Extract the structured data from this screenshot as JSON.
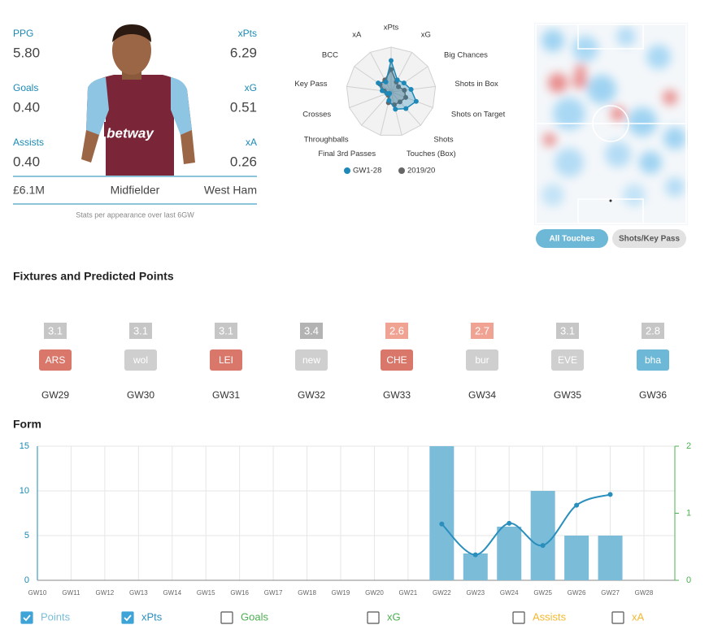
{
  "profile": {
    "stats": [
      {
        "left_label": "PPG",
        "left_value": "5.80",
        "right_label": "xPts",
        "right_value": "6.29"
      },
      {
        "left_label": "Goals",
        "left_value": "0.40",
        "right_label": "xG",
        "right_value": "0.51"
      },
      {
        "left_label": "Assists",
        "left_value": "0.40",
        "right_label": "xA",
        "right_value": "0.26"
      }
    ],
    "price": "£6.1M",
    "position": "Midfielder",
    "team": "West Ham",
    "note": "Stats per appearance over last 6GW"
  },
  "heatmap": {
    "buttons": [
      "All Touches",
      "Shots/Key Pass"
    ],
    "active": 0
  },
  "fixtures": {
    "title": "Fixtures and Predicted Points",
    "items": [
      {
        "gw": "GW29",
        "opponent": "ARS",
        "predicted": 3.1,
        "predicted_color": "#c6c6c6",
        "color": "#d8776a"
      },
      {
        "gw": "GW30",
        "opponent": "wol",
        "predicted": 3.1,
        "predicted_color": "#c6c6c6",
        "color": "#cfcfcf"
      },
      {
        "gw": "GW31",
        "opponent": "LEI",
        "predicted": 3.1,
        "predicted_color": "#c6c6c6",
        "color": "#d8776a"
      },
      {
        "gw": "GW32",
        "opponent": "new",
        "predicted": 3.4,
        "predicted_color": "#b3b3b3",
        "color": "#cfcfcf"
      },
      {
        "gw": "GW33",
        "opponent": "CHE",
        "predicted": 2.6,
        "predicted_color": "#f0a293",
        "color": "#d8776a"
      },
      {
        "gw": "GW34",
        "opponent": "bur",
        "predicted": 2.7,
        "predicted_color": "#f0a293",
        "color": "#cfcfcf"
      },
      {
        "gw": "GW35",
        "opponent": "EVE",
        "predicted": 3.1,
        "predicted_color": "#c6c6c6",
        "color": "#cfcfcf"
      },
      {
        "gw": "GW36",
        "opponent": "bha",
        "predicted": 2.8,
        "predicted_color": "#c6c6c6",
        "color": "#6db8d6"
      }
    ]
  },
  "chart_data": [
    {
      "type": "radar",
      "axes": [
        "xPts",
        "xG",
        "Big Chances",
        "Shots in Box",
        "Shots on Target",
        "Shots",
        "Touches (Box)",
        "Final 3rd Passes",
        "Throughballs",
        "Crosses",
        "Key Pass",
        "BCC",
        "xA"
      ],
      "rlim": [
        0,
        100
      ],
      "series": [
        {
          "name": "GW1-28",
          "color": "#1e88b8",
          "values": [
            70,
            30,
            35,
            45,
            60,
            50,
            40,
            20,
            5,
            10,
            20,
            35,
            25
          ]
        },
        {
          "name": "2019/20",
          "color": "#666666",
          "values": [
            50,
            25,
            20,
            30,
            35,
            30,
            30,
            25,
            10,
            10,
            15,
            30,
            30
          ]
        }
      ]
    },
    {
      "type": "combo",
      "title": "Form",
      "categories": [
        "GW10",
        "GW11",
        "GW12",
        "GW13",
        "GW14",
        "GW15",
        "GW16",
        "GW17",
        "GW18",
        "GW19",
        "GW20",
        "GW21",
        "GW22",
        "GW23",
        "GW24",
        "GW25",
        "GW26",
        "GW27",
        "GW28"
      ],
      "ylim": [
        0,
        15
      ],
      "yticks": [
        0,
        5,
        10,
        15
      ],
      "y2lim": [
        0,
        2
      ],
      "y2ticks": [
        0,
        1,
        2
      ],
      "y_color": "#1a8ab5",
      "y2_color": "#4caf50",
      "grid": true,
      "series": [
        {
          "name": "Points",
          "kind": "bar",
          "color": "#7bbcd8",
          "visible": true,
          "values": [
            null,
            null,
            null,
            null,
            null,
            null,
            null,
            null,
            null,
            null,
            null,
            null,
            15,
            3,
            6,
            10,
            5,
            5,
            null
          ]
        },
        {
          "name": "xPts",
          "kind": "line",
          "axis": "y2",
          "color": "#2a8fbd",
          "visible": true,
          "values": [
            null,
            null,
            null,
            null,
            null,
            null,
            null,
            null,
            null,
            null,
            null,
            null,
            0.84,
            0.38,
            0.85,
            0.52,
            1.12,
            1.28,
            null
          ]
        },
        {
          "name": "Goals",
          "color": "#4caf50",
          "visible": false
        },
        {
          "name": "xG",
          "color": "#4caf50",
          "visible": false
        },
        {
          "name": "Assists",
          "color": "#f5b82e",
          "visible": false
        },
        {
          "name": "xA",
          "color": "#f5b82e",
          "visible": false
        }
      ]
    }
  ]
}
